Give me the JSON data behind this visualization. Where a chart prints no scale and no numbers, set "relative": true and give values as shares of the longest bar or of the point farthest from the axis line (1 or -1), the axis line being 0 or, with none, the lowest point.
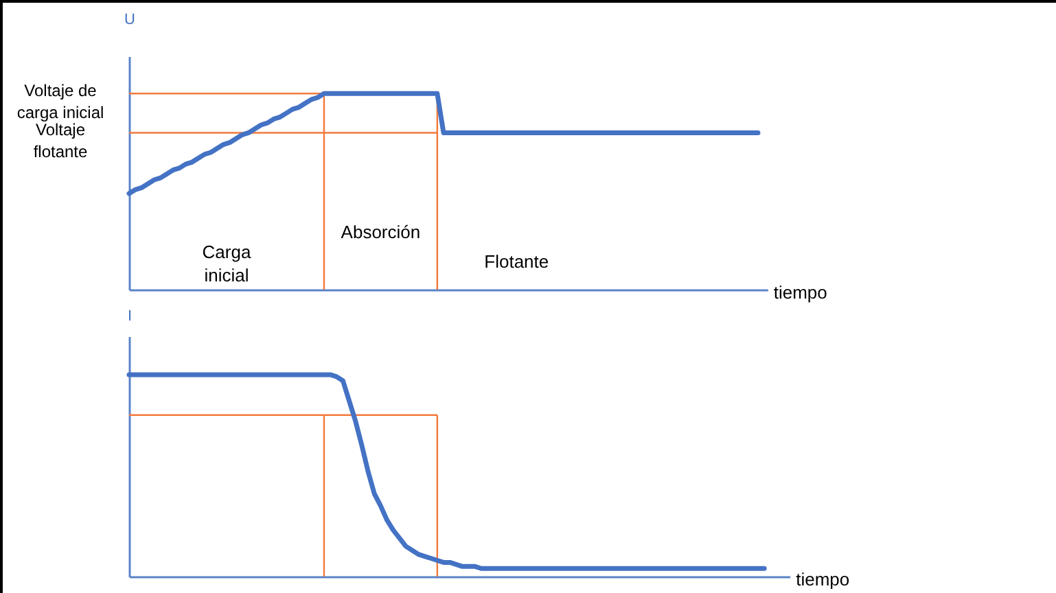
{
  "chart_data": [
    {
      "type": "line",
      "relative": true,
      "ylabel": "U",
      "xlabel": "tiempo",
      "categories": [
        null,
        null,
        null,
        null,
        null,
        null,
        null,
        null,
        null,
        null,
        null,
        null,
        null,
        null,
        null,
        null,
        null,
        null,
        null,
        null,
        null,
        null,
        null,
        null,
        null,
        null,
        null,
        null,
        null,
        null,
        null,
        null,
        null,
        null,
        null,
        null,
        null,
        null,
        null,
        null,
        null,
        null,
        null,
        null,
        null,
        null,
        null,
        null,
        null,
        null,
        null,
        null,
        null,
        null,
        null,
        null,
        null,
        null,
        null,
        null,
        null,
        null,
        null,
        null,
        null,
        null,
        null,
        null,
        null,
        null,
        null,
        null,
        null,
        null,
        null,
        null,
        null,
        null,
        null,
        null,
        null,
        null,
        null,
        null,
        null,
        null,
        null,
        null,
        null,
        null,
        null,
        null,
        null,
        null,
        null,
        null,
        null,
        null,
        null,
        null,
        null
      ],
      "series": [
        {
          "color": "#4472c4",
          "values": [
            0.49,
            0.51,
            0.52,
            0.54,
            0.56,
            0.57,
            0.59,
            0.61,
            0.62,
            0.64,
            0.65,
            0.67,
            0.69,
            0.7,
            0.72,
            0.74,
            0.75,
            0.77,
            0.79,
            0.8,
            0.82,
            0.84,
            0.85,
            0.87,
            0.88,
            0.9,
            0.92,
            0.93,
            0.95,
            0.97,
            0.98,
            1,
            1,
            1,
            1,
            1,
            1,
            1,
            1,
            1,
            1,
            1,
            1,
            1,
            1,
            1,
            1,
            1,
            1,
            1,
            0.8,
            0.8,
            0.8,
            0.8,
            0.8,
            0.8,
            0.8,
            0.8,
            0.8,
            0.8,
            0.8,
            0.8,
            0.8,
            0.8,
            0.8,
            0.8,
            0.8,
            0.8,
            0.8,
            0.8,
            0.8,
            0.8,
            0.8,
            0.8,
            0.8,
            0.8,
            0.8,
            0.8,
            0.8,
            0.8,
            0.8,
            0.8,
            0.8,
            0.8,
            0.8,
            0.8,
            0.8,
            0.8,
            0.8,
            0.8,
            0.8,
            0.8,
            0.8,
            0.8,
            0.8,
            0.8,
            0.8,
            0.8,
            0.8,
            0.8,
            0.8
          ]
        }
      ],
      "ref_lines": [
        {
          "axis": "y",
          "value": 1,
          "label": "Voltaje de\ncarga inicial",
          "color": "#f4793b"
        },
        {
          "axis": "y",
          "value": 0.8,
          "label": "Voltaje\nflotante",
          "color": "#f4793b"
        }
      ],
      "annotations": [
        "Carga\ninicial",
        "Absorción",
        "Flotante"
      ]
    },
    {
      "type": "line",
      "relative": true,
      "ylabel": "I",
      "xlabel": "tiempo",
      "categories": [
        null,
        null,
        null,
        null,
        null,
        null,
        null,
        null,
        null,
        null,
        null,
        null,
        null,
        null,
        null,
        null,
        null,
        null,
        null,
        null,
        null,
        null,
        null,
        null,
        null,
        null,
        null,
        null,
        null,
        null,
        null,
        null,
        null,
        null,
        null,
        null,
        null,
        null,
        null,
        null,
        null,
        null,
        null,
        null,
        null,
        null,
        null,
        null,
        null,
        null,
        null,
        null,
        null,
        null,
        null,
        null,
        null,
        null,
        null,
        null,
        null,
        null,
        null,
        null,
        null,
        null,
        null,
        null,
        null,
        null,
        null,
        null,
        null,
        null,
        null,
        null,
        null,
        null,
        null,
        null,
        null,
        null,
        null,
        null,
        null,
        null,
        null,
        null,
        null,
        null,
        null,
        null,
        null,
        null,
        null,
        null,
        null,
        null,
        null,
        null,
        null,
        null
      ],
      "series": [
        {
          "color": "#4472c4",
          "values": [
            1,
            1,
            1,
            1,
            1,
            1,
            1,
            1,
            1,
            1,
            1,
            1,
            1,
            1,
            1,
            1,
            1,
            1,
            1,
            1,
            1,
            1,
            1,
            1,
            1,
            1,
            1,
            1,
            1,
            1,
            1,
            1,
            1,
            0.99,
            0.97,
            0.87,
            0.77,
            0.65,
            0.52,
            0.41,
            0.35,
            0.28,
            0.23,
            0.19,
            0.15,
            0.13,
            0.11,
            0.1,
            0.09,
            0.08,
            0.07,
            0.07,
            0.06,
            0.05,
            0.05,
            0.05,
            0.04,
            0.04,
            0.04,
            0.04,
            0.04,
            0.04,
            0.04,
            0.04,
            0.04,
            0.04,
            0.04,
            0.04,
            0.04,
            0.04,
            0.04,
            0.04,
            0.04,
            0.04,
            0.04,
            0.04,
            0.04,
            0.04,
            0.04,
            0.04,
            0.04,
            0.04,
            0.04,
            0.04,
            0.04,
            0.04,
            0.04,
            0.04,
            0.04,
            0.04,
            0.04,
            0.04,
            0.04,
            0.04,
            0.04,
            0.04,
            0.04,
            0.04,
            0.04,
            0.04,
            0.04,
            0.04
          ]
        }
      ],
      "ref_lines": [
        {
          "axis": "y",
          "value": 0.8,
          "color": "#f4793b"
        }
      ]
    }
  ]
}
